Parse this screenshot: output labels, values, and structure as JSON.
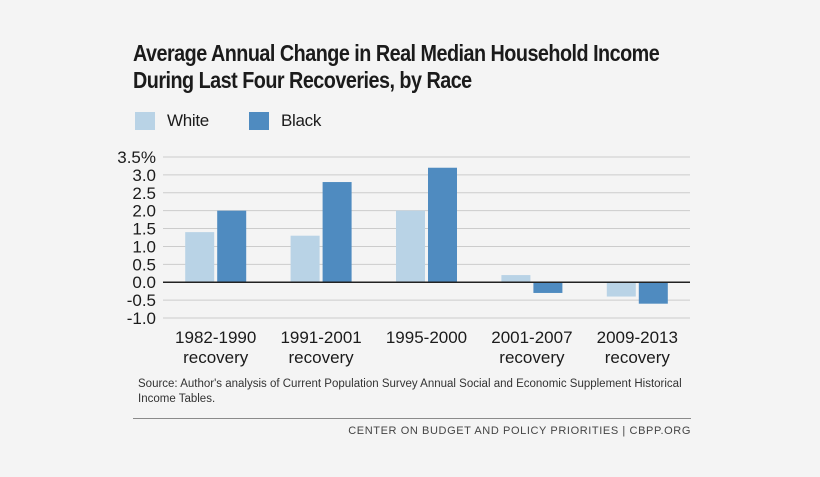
{
  "title_line1": "Average Annual Change in Real Median Household Income",
  "title_line2": "During Last Four Recoveries, by Race",
  "source": "Source: Author's analysis of Current Population Survey Annual Social and Economic Supplement Historical Income Tables.",
  "footer": "CENTER ON BUDGET AND POLICY PRIORITIES | CBPP.ORG",
  "colors": {
    "white_series": "#b9d3e6",
    "black_series": "#4f8bc0",
    "grid": "#cccccc",
    "zero_line": "#222222"
  },
  "chart_data": {
    "type": "bar",
    "categories": [
      [
        "1982-1990",
        "recovery"
      ],
      [
        "1991-2001",
        "recovery"
      ],
      [
        "1995-2000"
      ],
      [
        "2001-2007",
        "recovery"
      ],
      [
        "2009-2013",
        "recovery"
      ]
    ],
    "series": [
      {
        "name": "White",
        "values": [
          1.4,
          1.3,
          2.0,
          0.2,
          -0.4
        ]
      },
      {
        "name": "Black",
        "values": [
          2.0,
          2.8,
          3.2,
          -0.3,
          -0.6
        ]
      }
    ],
    "ylim": [
      -1.0,
      3.5
    ],
    "yticks": [
      "3.5%",
      "3.0",
      "2.5",
      "2.0",
      "1.5",
      "1.0",
      "0.5",
      "0.0",
      "-0.5",
      "-1.0"
    ],
    "ytick_values": [
      3.5,
      3.0,
      2.5,
      2.0,
      1.5,
      1.0,
      0.5,
      0.0,
      -0.5,
      -1.0
    ],
    "legend_position": "top-left",
    "grid": true
  }
}
